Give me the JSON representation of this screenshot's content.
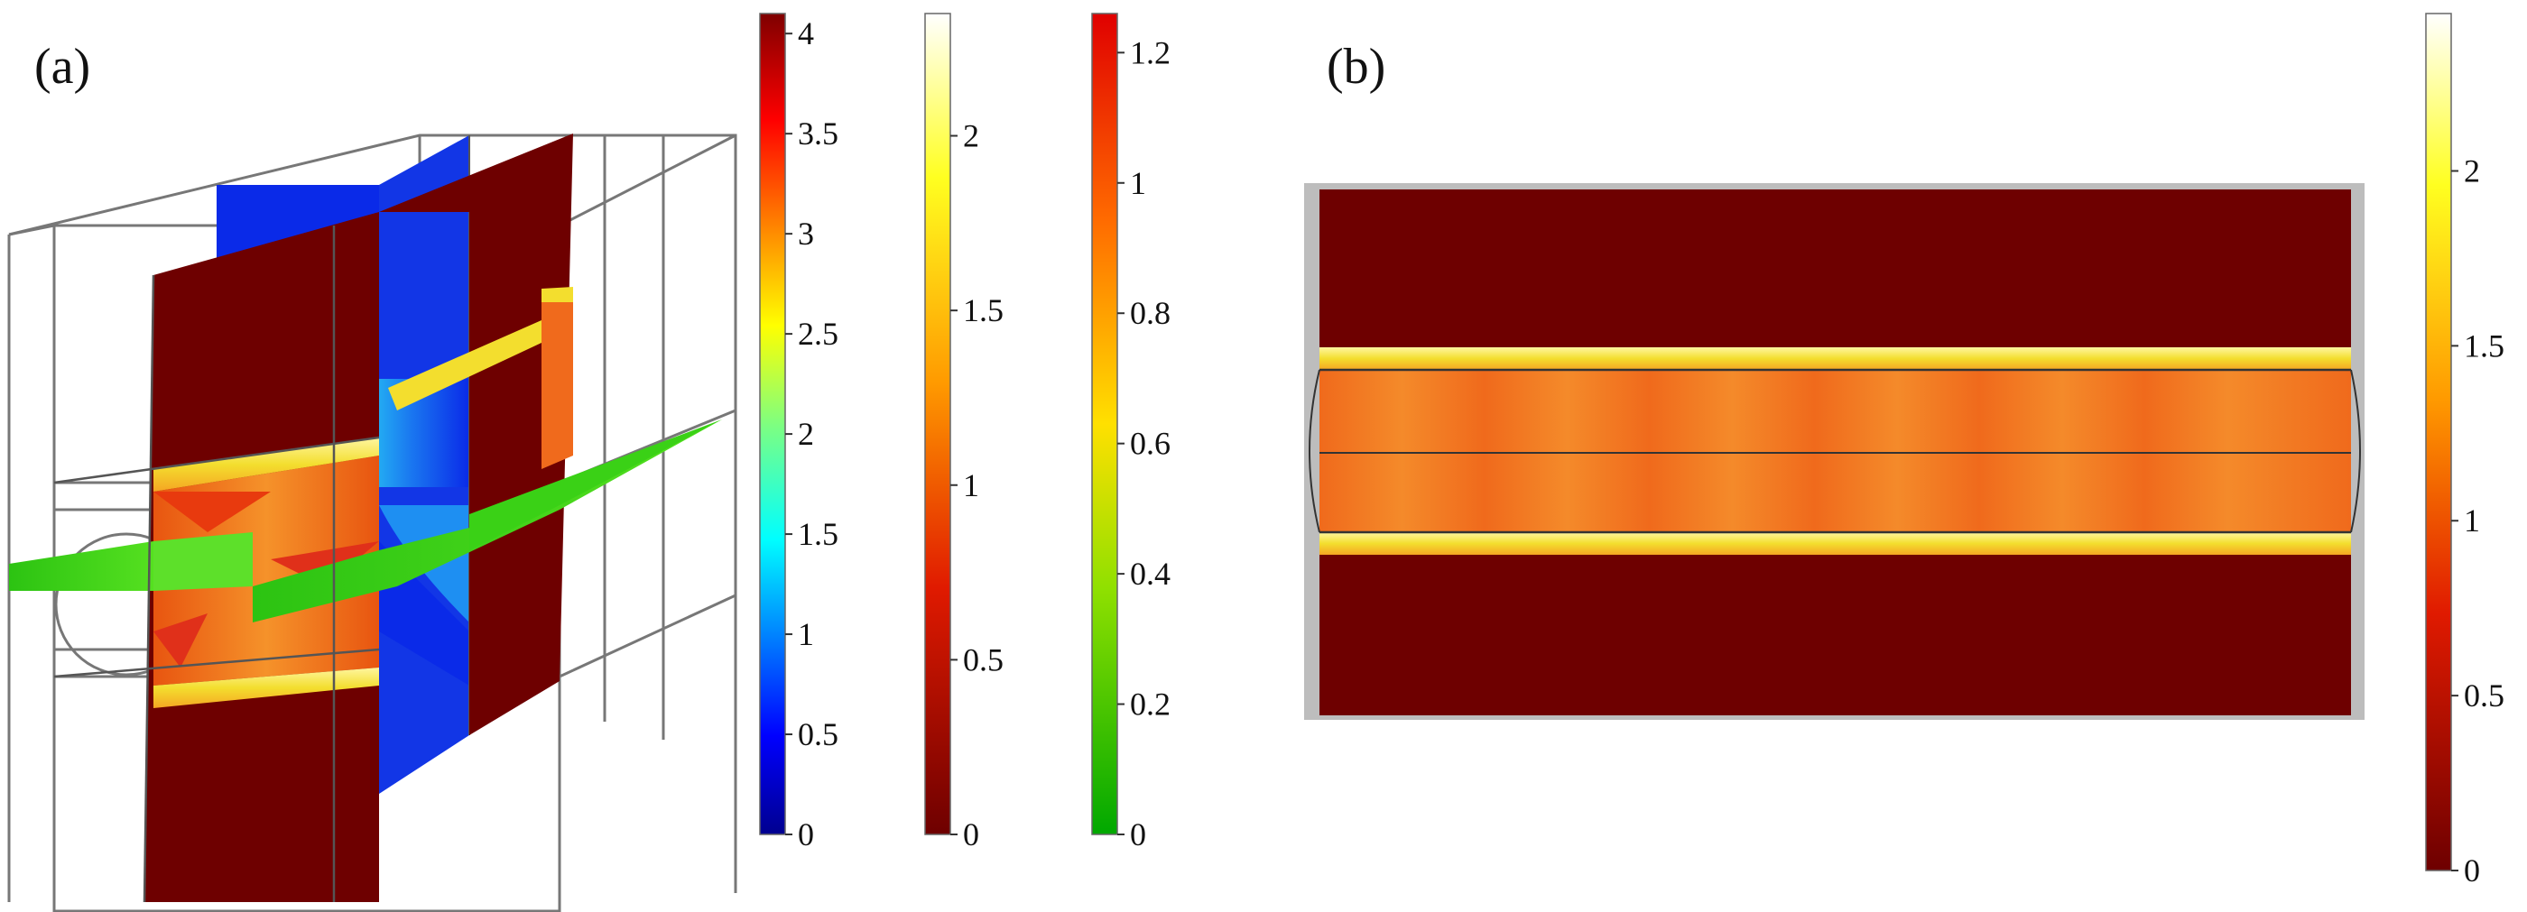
{
  "panels": [
    {
      "label": "(a)"
    },
    {
      "label": "(b)"
    }
  ],
  "colorbars": [
    {
      "id": "a-jet",
      "colormap": "jet",
      "ticks": [
        "0",
        "0.5",
        "1",
        "1.5",
        "2",
        "2.5",
        "3",
        "3.5",
        "4"
      ],
      "range": [
        0,
        4.1
      ]
    },
    {
      "id": "a-heat",
      "colormap": "heat",
      "ticks": [
        "0",
        "0.5",
        "1",
        "1.5",
        "2"
      ],
      "range": [
        0,
        2.35
      ]
    },
    {
      "id": "a-traffic",
      "colormap": "green-yellow-red",
      "ticks": [
        "0",
        "0.2",
        "0.4",
        "0.6",
        "0.8",
        "1",
        "1.2"
      ],
      "range": [
        0,
        1.26
      ]
    },
    {
      "id": "b-heat",
      "colormap": "heat",
      "ticks": [
        "0",
        "0.5",
        "1",
        "1.5",
        "2"
      ],
      "range": [
        0,
        2.45
      ]
    }
  ],
  "colors": {
    "deep_red": "#6e0000",
    "blue_plane": "#0a2ae8",
    "green_plane": "#33cc11",
    "orange_core": "#f26a1b",
    "yellow_band": "#f5e436"
  }
}
